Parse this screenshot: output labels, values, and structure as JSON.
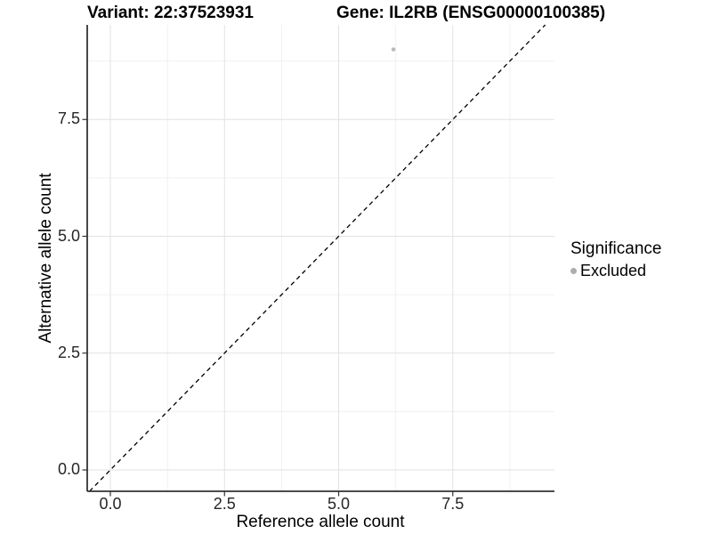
{
  "chart_data": {
    "type": "scatter",
    "titles": {
      "left": "Variant: 22:37523931",
      "right": "Gene: IL2RB (ENSG00000100385)"
    },
    "xlabel": "Reference allele count",
    "ylabel": "Alternative allele count",
    "x_ticks": [
      {
        "value": 0,
        "label": "0.0"
      },
      {
        "value": 2.5,
        "label": "2.5"
      },
      {
        "value": 5,
        "label": "5.0"
      },
      {
        "value": 7.5,
        "label": "7.5"
      }
    ],
    "y_ticks": [
      {
        "value": 0,
        "label": "0.0"
      },
      {
        "value": 2.5,
        "label": "2.5"
      },
      {
        "value": 5,
        "label": "5.0"
      },
      {
        "value": 7.5,
        "label": "7.5"
      }
    ],
    "x_minor": [
      1.25,
      3.75,
      6.25,
      8.75
    ],
    "y_minor": [
      1.25,
      3.75,
      6.25,
      8.75
    ],
    "xlim": [
      -0.507,
      9.727
    ],
    "ylim": [
      -0.457,
      9.524
    ],
    "grid": true,
    "points": [
      {
        "x": 6.2,
        "y": 9.0,
        "series": "Excluded",
        "color": "#b9b9b9",
        "radius": 2.3
      }
    ],
    "identity_line": {
      "slope": 1,
      "intercept": 0,
      "style": "dashed",
      "color": "#000000"
    },
    "legend": {
      "title": "Significance",
      "position": "right",
      "items": [
        {
          "label": "Excluded",
          "color": "#adadad"
        }
      ]
    },
    "colors": {
      "grid_major": "#e2e2e2",
      "grid_minor": "#f0f0f0",
      "axis_line": "#333333",
      "tick_mark": "#333333",
      "tick_text": "#262626"
    }
  }
}
